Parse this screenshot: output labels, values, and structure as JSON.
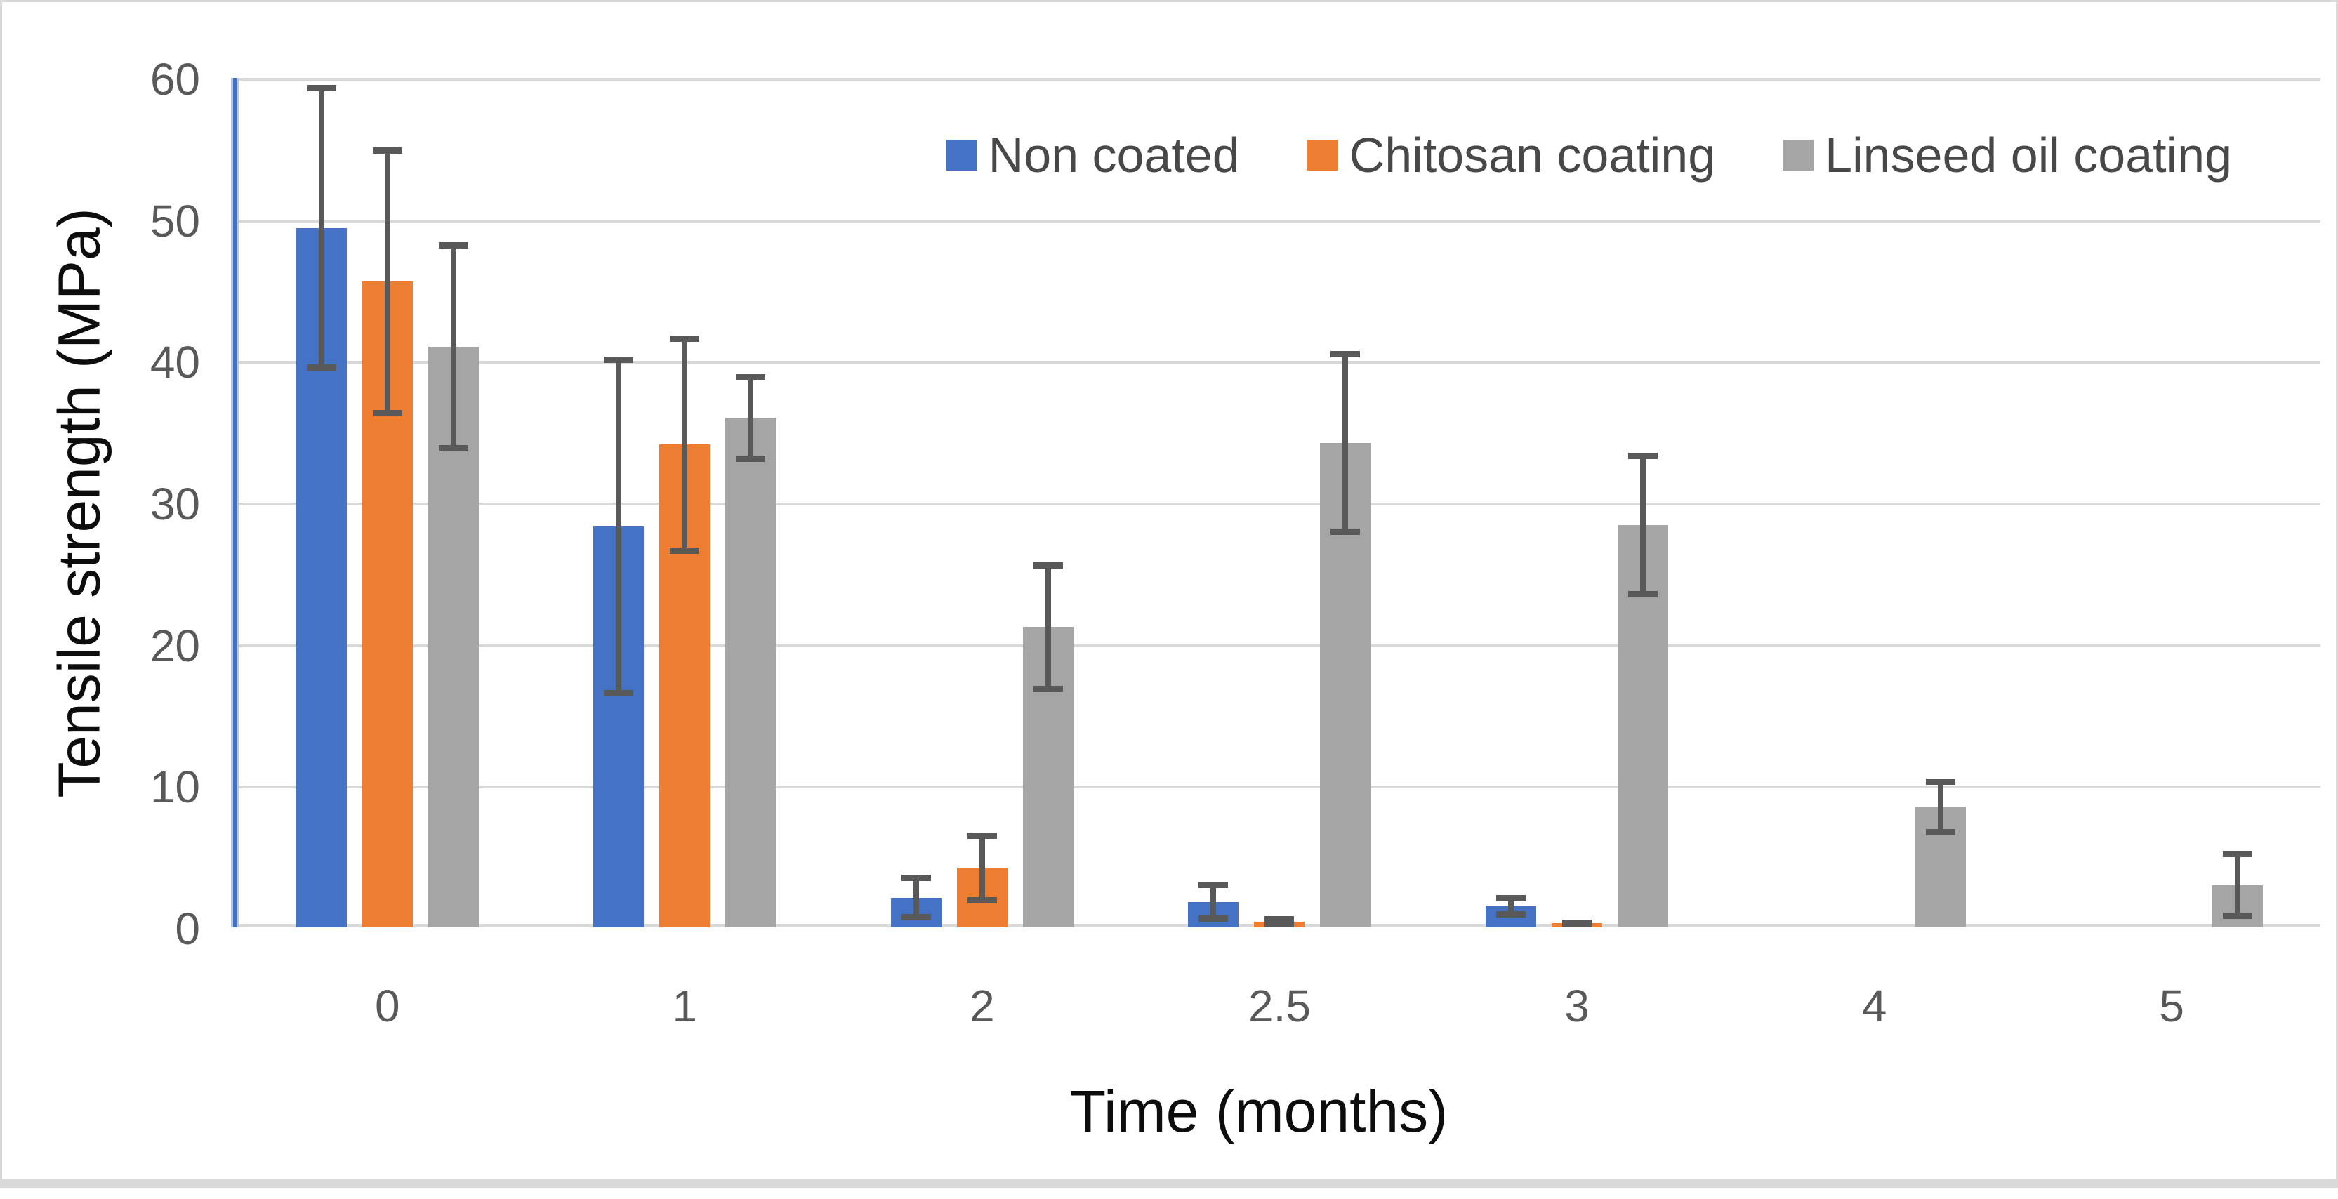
{
  "chart_data": {
    "type": "bar",
    "title": "",
    "xlabel": "Time (months)",
    "ylabel": "Tensile strength (MPa)",
    "categories": [
      "0",
      "1",
      "2",
      "2.5",
      "3",
      "4",
      "5"
    ],
    "yticks": [
      0,
      10,
      20,
      30,
      40,
      50,
      60
    ],
    "ylim": [
      0,
      60
    ],
    "grid": "horizontal",
    "legend_position": "top-right",
    "series": [
      {
        "name": "Non coated",
        "color": "#4472C4",
        "values": [
          49.4,
          28.3,
          2.1,
          1.8,
          1.5,
          0,
          0
        ],
        "errors": [
          10.1,
          12.0,
          1.6,
          1.4,
          0.8,
          0,
          0
        ]
      },
      {
        "name": "Chitosan coating",
        "color": "#ED7D31",
        "values": [
          45.6,
          34.1,
          4.2,
          0.4,
          0.3,
          0,
          0
        ],
        "errors": [
          9.5,
          7.7,
          2.5,
          0.4,
          0.25,
          0,
          0
        ]
      },
      {
        "name": "Linseed oil coating",
        "color": "#A5A5A5",
        "values": [
          41.0,
          36.0,
          21.2,
          34.2,
          28.4,
          8.5,
          3.0
        ],
        "errors": [
          7.4,
          3.1,
          4.6,
          6.5,
          5.1,
          2.0,
          2.4
        ]
      }
    ],
    "error_bar_color": "#595959",
    "gridline_color": "#D9D9D9",
    "axis_line_color": "#4472C4"
  }
}
